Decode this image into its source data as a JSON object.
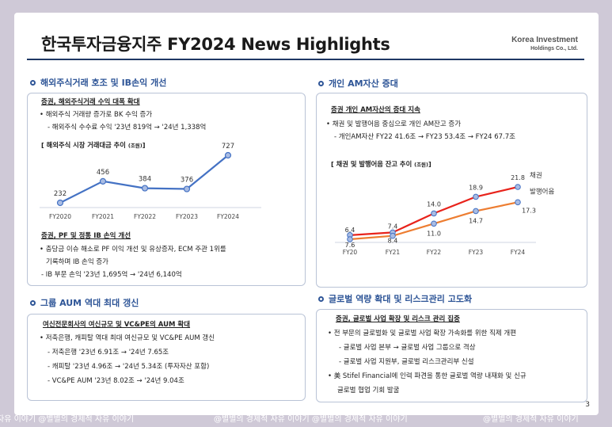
{
  "slide": {
    "title": "한국투자금융지주 FY2024 News Highlights",
    "brand_line1": "Korea Investment",
    "brand_line2": "Holdings Co., Ltd.",
    "page_number": "3"
  },
  "sections": {
    "overseas": {
      "title": "해외주식거래 호조 및  IB손익 개선",
      "heading1": "증권, 해외주식거래 수익 대폭 확대",
      "line1": "• 해외주식 거래량 증가로 BK 수익 증가",
      "line2": "- 해외주식 수수료 수익 '23년 819억 → '24년 1,338억",
      "chart_title": "[ 해외주식 시장 거래대금 추이 ",
      "chart_unit": "(조원)",
      "chart_title_end": "]",
      "heading2": "증권, PF 및 정통 IB 손익 개선",
      "line3": "• 충당금 이슈 해소로 PF 이익 개선 및 유상증자, ECM 주관 1위를",
      "line4": "기록하며 IB 손익 증가",
      "line5": "- IB 부문 손익 '23년 1,695억 → '24년 6,140억"
    },
    "aum": {
      "title": "그룹 AUM 역대 최대 갱신",
      "heading": "여신전문회사의 여신규모 및 VC&PE의 AUM 확대",
      "line1": "• 저축은행, 캐피탈 역대 최대 여신규모 및 VC&PE AUM 갱신",
      "line2": "- 저축은행 '23년 6.91조 → '24년 7.65조",
      "line3": "- 캐피탈 '23년 4.96조 → '24년 5.34조 (투자자산 포함)",
      "line4": "- VC&PE AUM '23년 8.02조 → '24년 9.04조"
    },
    "personal_am": {
      "title": "개인 AM자산 증대",
      "heading": "증권 개인 AM자산의 증대 지속",
      "line1": "•  채권 및 발행어음 중심으로 개인 AM잔고 증가",
      "line2": "- 개인AM자산 FY22 41.6조 → FY23 53.4조 →  FY24 67.7조",
      "chart_title": "[ 채권 및 발행어음 잔고 추이 ",
      "chart_unit": "(조원)",
      "chart_title_end": "]"
    },
    "global": {
      "title": "글로벌 역량 확대 및 리스크관리 고도화",
      "heading": "증권, 글로벌 사업 확장 및 리스크 관리 집중",
      "line1": "•  전 부문의 글로벌화 및 글로벌 사업 확장 가속화를 위한 직제 개편",
      "line2": "- 글로벌 사업 본부 → 글로벌 사업 그룹으로 격상",
      "line3": "- 글로벌 사업 지원부, 글로벌 리스크관리부 신설",
      "line4": "• 美 Stifel Financial에 인력 파견을 통한 글로벌 역량 내재화 및 신규",
      "line5": "글로벌 협업 기회 발굴"
    }
  },
  "watermark": {
    "segments": [
      "자유 이야기  @별별의 경제적 자유 이야기",
      "@별별의 경제적 자유 이야기 @별별의 경제적 자유 이야기",
      "@별별의 경제적 자유 이야기"
    ]
  },
  "chart_data": [
    {
      "type": "line",
      "title": "해외주식 시장 거래대금 추이 (조원)",
      "categories": [
        "FY2020",
        "FY2021",
        "FY2022",
        "FY2023",
        "FY2024"
      ],
      "values": [
        232,
        456,
        384,
        376,
        727
      ],
      "color": "#4472c4"
    },
    {
      "type": "line",
      "title": "채권 및 발행어음 잔고 추이 (조원)",
      "categories": [
        "FY20",
        "FY21",
        "FY22",
        "FY23",
        "FY24"
      ],
      "series": [
        {
          "name": "채권",
          "values": [
            7.6,
            8.4,
            14.0,
            18.9,
            21.8
          ],
          "color": "#e8231b"
        },
        {
          "name": "발행어음",
          "values": [
            6.4,
            7.4,
            11.0,
            14.7,
            17.3
          ],
          "color": "#ed7d31"
        }
      ]
    }
  ]
}
